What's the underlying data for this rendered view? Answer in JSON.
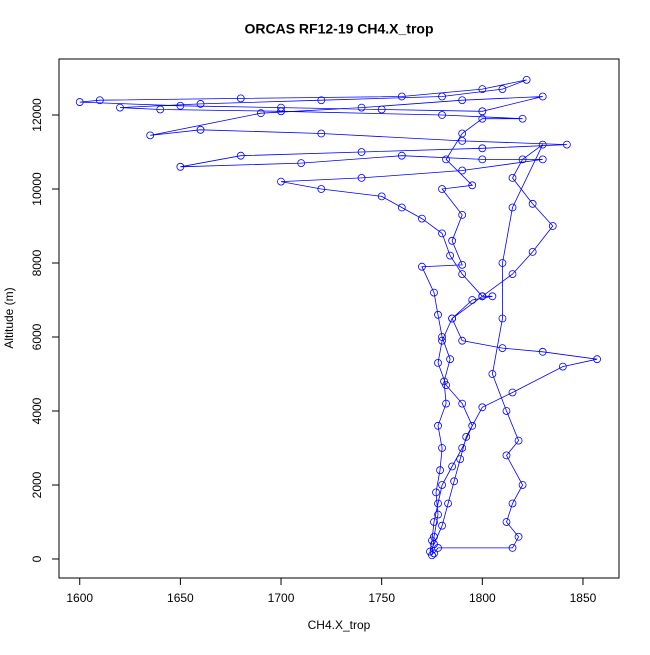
{
  "chart_data": {
    "type": "scatter",
    "title": "ORCAS RF12-19 CH4.X_trop",
    "x_label": "CH4.X_trop",
    "y_label": "Altitude (m)",
    "xlim": [
      1589.7,
      1867.9
    ],
    "ylim": [
      -514,
      13514
    ],
    "xticks": [
      1600,
      1650,
      1700,
      1750,
      1800,
      1850
    ],
    "yticks": [
      0,
      2000,
      4000,
      6000,
      8000,
      10000,
      12000
    ],
    "lines": true,
    "series": [
      {
        "name": "CH4.X_trop",
        "color": "#0000ff",
        "x": [
          1775,
          1776,
          1778,
          1777,
          1779,
          1780,
          1778,
          1782,
          1781,
          1784,
          1780,
          1778,
          1776,
          1770,
          1790,
          1785,
          1790,
          1780,
          1795,
          1782,
          1790,
          1800,
          1820,
          1780,
          1700,
          1640,
          1620,
          1660,
          1720,
          1780,
          1810,
          1822,
          1800,
          1760,
          1680,
          1610,
          1600,
          1650,
          1700,
          1750,
          1800,
          1830,
          1790,
          1740,
          1690,
          1635,
          1660,
          1720,
          1790,
          1842,
          1800,
          1740,
          1680,
          1650,
          1710,
          1760,
          1800,
          1830,
          1790,
          1740,
          1700,
          1720,
          1750,
          1760,
          1770,
          1780,
          1784,
          1790,
          1800,
          1805,
          1795,
          1785,
          1780,
          1778,
          1782,
          1790,
          1795,
          1790,
          1785,
          1780,
          1778,
          1776,
          1775,
          1774,
          1776,
          1780,
          1783,
          1786,
          1789,
          1792,
          1800,
          1815,
          1840,
          1857,
          1830,
          1810,
          1790,
          1785,
          1800,
          1815,
          1825,
          1835,
          1825,
          1815,
          1820,
          1830,
          1815,
          1810,
          1810,
          1805,
          1812,
          1818,
          1812,
          1820,
          1815,
          1812,
          1818,
          1815,
          1778,
          1776
        ],
        "values": [
          100,
          600,
          1200,
          1800,
          2400,
          3000,
          3600,
          4200,
          4800,
          5400,
          6000,
          6600,
          7200,
          7900,
          7950,
          8600,
          9300,
          10000,
          10100,
          10800,
          11500,
          11900,
          11900,
          12000,
          12100,
          12150,
          12200,
          12300,
          12400,
          12500,
          12700,
          12950,
          12700,
          12500,
          12450,
          12400,
          12350,
          12250,
          12200,
          12150,
          12100,
          12500,
          12400,
          12200,
          12050,
          11450,
          11600,
          11500,
          11300,
          11200,
          11100,
          11000,
          10900,
          10600,
          10700,
          10900,
          10800,
          10800,
          10500,
          10300,
          10200,
          10000,
          9800,
          9500,
          9200,
          8800,
          8200,
          7700,
          7100,
          7100,
          7000,
          6500,
          5900,
          5300,
          4700,
          4200,
          3600,
          3000,
          2500,
          2000,
          1500,
          1000,
          500,
          200,
          400,
          900,
          1500,
          2100,
          2700,
          3300,
          4100,
          4500,
          5200,
          5400,
          5600,
          5700,
          5900,
          6500,
          7100,
          7700,
          8300,
          9000,
          9600,
          10300,
          10800,
          11200,
          9500,
          8000,
          6500,
          5000,
          4000,
          3200,
          2800,
          2000,
          1500,
          1000,
          600,
          300,
          300,
          150
        ]
      }
    ]
  }
}
